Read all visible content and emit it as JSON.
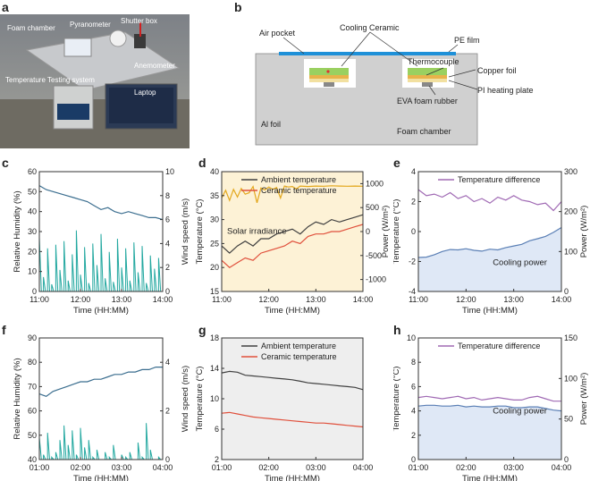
{
  "panel_labels": {
    "a": "a",
    "b": "b",
    "c": "c",
    "d": "d",
    "e": "e",
    "f": "f",
    "g": "g",
    "h": "h"
  },
  "photo_labels": {
    "pyranometer": "Pyranometer",
    "shutter_box": "Shutter box",
    "foam_chamber": "Foam chamber",
    "anemometer": "Anemometer",
    "temp_system": "Temperature Testing system",
    "laptop": "Laptop"
  },
  "schematic": {
    "cooling_ceramic": "Cooling Ceramic",
    "air_pocket": "Air pocket",
    "pe_film": "PE film",
    "thermocouple": "Thermocouple",
    "copper_foil": "Copper foil",
    "pi_heating": "PI heating plate",
    "eva": "EVA foam rubber",
    "al_foil": "Al foil",
    "foam_chamber": "Foam chamber",
    "colors": {
      "foam": "#d0d0d0",
      "film": "#1e90d8",
      "ceramic": "#9ad060",
      "copper": "#e8b24a",
      "heater": "#f2e0a0"
    }
  },
  "chart_data": [
    {
      "id": "c",
      "type": "line",
      "xlabel": "Time (HH:MM)",
      "ylabel": "Relative Humidity (%)",
      "y2label": "Wind speed (m/s)",
      "xticks": [
        "11:00",
        "12:00",
        "13:00",
        "14:00"
      ],
      "xlim": [
        0,
        180
      ],
      "ylim": [
        0,
        60
      ],
      "yticks": [
        0,
        10,
        20,
        30,
        40,
        50,
        60
      ],
      "y2lim": [
        0,
        10
      ],
      "y2ticks": [
        0,
        2,
        4,
        6,
        8,
        10
      ],
      "series": [
        {
          "name": "Relative Humidity",
          "axis": "left",
          "color": "#3b6e8f",
          "kind": "line",
          "x": [
            0,
            10,
            20,
            30,
            40,
            50,
            60,
            70,
            80,
            90,
            100,
            110,
            120,
            130,
            140,
            150,
            160,
            170,
            180
          ],
          "y": [
            53,
            51,
            50,
            49,
            48,
            47,
            46,
            45,
            43,
            41,
            42,
            40,
            39,
            40,
            39,
            38,
            37,
            37,
            36
          ]
        },
        {
          "name": "Wind speed",
          "axis": "right",
          "color": "#23a8a0",
          "kind": "spiky",
          "x": [
            0,
            6,
            12,
            18,
            24,
            30,
            36,
            42,
            48,
            54,
            60,
            66,
            72,
            78,
            84,
            90,
            96,
            102,
            108,
            114,
            120,
            126,
            132,
            138,
            144,
            150,
            156,
            162,
            168,
            174,
            180
          ],
          "y": [
            4.5,
            1.2,
            3.6,
            0.6,
            3.9,
            1.8,
            4.2,
            0.9,
            3.1,
            5.1,
            1.4,
            3.7,
            0.7,
            4.0,
            2.2,
            4.8,
            1.1,
            3.3,
            0.8,
            4.4,
            2.0,
            3.6,
            0.9,
            4.1,
            1.6,
            3.8,
            0.7,
            3.0,
            1.9,
            2.8,
            1.5
          ]
        }
      ]
    },
    {
      "id": "d",
      "type": "line",
      "xlabel": "Time (HH:MM)",
      "ylabel": "Temperature (°C)",
      "y2label": "Power (W/m²)",
      "xticks": [
        "11:00",
        "12:00",
        "13:00",
        "14:00"
      ],
      "xlim": [
        0,
        180
      ],
      "ylim": [
        15,
        40
      ],
      "yticks": [
        15,
        20,
        25,
        30,
        35,
        40
      ],
      "y2lim": [
        -1250,
        1250
      ],
      "y2ticks": [
        -1000,
        -500,
        0,
        500,
        1000
      ],
      "background": "#fdf2d6",
      "legend": [
        "Ambient temperature",
        "Ceramic temperature"
      ],
      "annotation": "Solar irradiance",
      "series": [
        {
          "name": "Ambient temperature",
          "axis": "left",
          "color": "#404040",
          "kind": "line",
          "x": [
            0,
            10,
            20,
            30,
            40,
            50,
            60,
            70,
            80,
            90,
            100,
            110,
            120,
            130,
            140,
            150,
            160,
            170,
            180
          ],
          "y": [
            24.5,
            23.0,
            24.5,
            25.5,
            24.5,
            26.0,
            26.0,
            27.0,
            27.5,
            28.0,
            27.0,
            28.5,
            29.5,
            29.0,
            30.0,
            29.5,
            30.0,
            30.5,
            31.0
          ]
        },
        {
          "name": "Ceramic temperature",
          "axis": "left",
          "color": "#e0503c",
          "kind": "line",
          "x": [
            0,
            10,
            20,
            30,
            40,
            50,
            60,
            70,
            80,
            90,
            100,
            110,
            120,
            130,
            140,
            150,
            160,
            170,
            180
          ],
          "y": [
            21.5,
            20.0,
            21.0,
            22.0,
            21.5,
            23.0,
            23.5,
            24.0,
            24.5,
            25.5,
            25.0,
            26.5,
            27.0,
            27.0,
            27.5,
            27.5,
            28.0,
            28.5,
            29.0
          ]
        },
        {
          "name": "Solar irradiance",
          "axis": "right",
          "color": "#e3a81e",
          "kind": "line",
          "x": [
            0,
            5,
            10,
            15,
            20,
            25,
            30,
            35,
            40,
            45,
            50,
            55,
            60,
            65,
            70,
            75,
            80,
            85,
            90,
            95,
            100,
            110,
            120,
            130,
            140,
            150,
            160,
            170,
            180
          ],
          "y": [
            700,
            860,
            650,
            880,
            720,
            900,
            780,
            810,
            940,
            600,
            910,
            870,
            930,
            880,
            920,
            700,
            950,
            930,
            940,
            890,
            950,
            940,
            950,
            945,
            955,
            950,
            945,
            950,
            945
          ]
        }
      ]
    },
    {
      "id": "e",
      "type": "area",
      "xlabel": "Time (HH:MM)",
      "ylabel": "Temperature (°C)",
      "y2label": "Power (W/m²)",
      "xticks": [
        "11:00",
        "12:00",
        "13:00",
        "14:00"
      ],
      "xlim": [
        0,
        180
      ],
      "ylim": [
        -4,
        4
      ],
      "yticks": [
        -4,
        -2,
        0,
        2,
        4
      ],
      "y2lim": [
        0,
        300
      ],
      "y2ticks": [
        0,
        100,
        200,
        300
      ],
      "legend": [
        "Temperature difference"
      ],
      "annotation": "Cooling power",
      "series": [
        {
          "name": "Temperature difference",
          "axis": "left",
          "color": "#a06ab4",
          "kind": "line",
          "x": [
            0,
            10,
            20,
            30,
            40,
            50,
            60,
            70,
            80,
            90,
            100,
            110,
            120,
            130,
            140,
            150,
            160,
            170,
            180
          ],
          "y": [
            2.8,
            2.4,
            2.5,
            2.3,
            2.6,
            2.2,
            2.4,
            2.0,
            2.2,
            1.9,
            2.3,
            2.1,
            2.4,
            2.1,
            2.0,
            1.8,
            1.9,
            1.4,
            2.0
          ]
        },
        {
          "name": "Cooling power",
          "axis": "right",
          "color": "#5a7fb5",
          "kind": "area",
          "fill": "#dfe8f6",
          "x": [
            0,
            10,
            20,
            30,
            40,
            50,
            60,
            70,
            80,
            90,
            100,
            110,
            120,
            130,
            140,
            150,
            160,
            170,
            180
          ],
          "y": [
            85,
            86,
            92,
            100,
            105,
            104,
            107,
            103,
            101,
            106,
            104,
            110,
            114,
            118,
            127,
            132,
            138,
            148,
            160
          ]
        }
      ]
    },
    {
      "id": "f",
      "type": "line",
      "xlabel": "Time (HH:MM)",
      "ylabel": "Relative Humidity (%)",
      "y2label": "Wind speed (m/s)",
      "xticks": [
        "01:00",
        "02:00",
        "03:00",
        "04:00"
      ],
      "xlim": [
        0,
        180
      ],
      "ylim": [
        40,
        90
      ],
      "yticks": [
        40,
        50,
        60,
        70,
        80,
        90
      ],
      "y2lim": [
        0,
        5
      ],
      "y2ticks": [
        0,
        2,
        4
      ],
      "series": [
        {
          "name": "Relative Humidity",
          "axis": "left",
          "color": "#3b6e8f",
          "kind": "line",
          "x": [
            0,
            10,
            20,
            30,
            40,
            50,
            60,
            70,
            80,
            90,
            100,
            110,
            120,
            130,
            140,
            150,
            160,
            170,
            180
          ],
          "y": [
            67,
            66,
            68,
            69,
            70,
            71,
            72,
            72,
            73,
            73,
            74,
            75,
            75,
            76,
            76,
            77,
            77,
            78,
            78
          ]
        },
        {
          "name": "Wind speed",
          "axis": "right",
          "color": "#23a8a0",
          "kind": "spiky",
          "x": [
            0,
            6,
            12,
            18,
            24,
            30,
            36,
            42,
            48,
            54,
            60,
            66,
            72,
            78,
            84,
            90,
            96,
            102,
            108,
            114,
            120,
            126,
            132,
            138,
            144,
            150,
            156,
            162,
            168,
            174,
            180
          ],
          "y": [
            0.9,
            0.2,
            1.1,
            0.1,
            0.3,
            0.8,
            1.4,
            0.6,
            1.2,
            0.2,
            1.3,
            0.5,
            0.8,
            0.1,
            0.4,
            0.0,
            0.3,
            0.1,
            0.6,
            0.0,
            0.2,
            0.1,
            0.3,
            0.0,
            0.7,
            0.1,
            1.5,
            0.4,
            0.0,
            0.1,
            0.0
          ]
        }
      ]
    },
    {
      "id": "g",
      "type": "line",
      "xlabel": "Time (HH:MM)",
      "ylabel": "Temperature (°C)",
      "xticks": [
        "01:00",
        "02:00",
        "03:00",
        "04:00"
      ],
      "xlim": [
        0,
        180
      ],
      "ylim": [
        2,
        18
      ],
      "yticks": [
        2,
        6,
        10,
        14,
        18
      ],
      "background": "#eeeeee",
      "legend": [
        "Ambient temperature",
        "Ceramic temperature"
      ],
      "series": [
        {
          "name": "Ambient temperature",
          "axis": "left",
          "color": "#404040",
          "kind": "line",
          "x": [
            0,
            10,
            20,
            30,
            40,
            50,
            60,
            70,
            80,
            90,
            100,
            110,
            120,
            130,
            140,
            150,
            160,
            170,
            180
          ],
          "y": [
            13.4,
            13.6,
            13.5,
            13.1,
            13.0,
            12.9,
            12.8,
            12.7,
            12.6,
            12.5,
            12.3,
            12.1,
            12.0,
            11.9,
            11.8,
            11.7,
            11.6,
            11.5,
            11.2
          ]
        },
        {
          "name": "Ceramic temperature",
          "axis": "left",
          "color": "#e0503c",
          "kind": "line",
          "x": [
            0,
            10,
            20,
            30,
            40,
            50,
            60,
            70,
            80,
            90,
            100,
            110,
            120,
            130,
            140,
            150,
            160,
            170,
            180
          ],
          "y": [
            8.1,
            8.2,
            8.0,
            7.8,
            7.6,
            7.5,
            7.4,
            7.3,
            7.2,
            7.1,
            7.0,
            6.9,
            6.8,
            6.8,
            6.7,
            6.6,
            6.5,
            6.4,
            6.3
          ]
        }
      ]
    },
    {
      "id": "h",
      "type": "area",
      "xlabel": "Time (HH:MM)",
      "ylabel": "Temperature (°C)",
      "y2label": "Power (W/m²)",
      "xticks": [
        "01:00",
        "02:00",
        "03:00",
        "04:00"
      ],
      "xlim": [
        0,
        180
      ],
      "ylim": [
        0,
        10
      ],
      "yticks": [
        0,
        2,
        4,
        6,
        8,
        10
      ],
      "y2lim": [
        0,
        150
      ],
      "y2ticks": [
        0,
        50,
        100,
        150
      ],
      "legend": [
        "Temperature difference"
      ],
      "annotation": "Cooling power",
      "series": [
        {
          "name": "Temperature difference",
          "axis": "left",
          "color": "#a06ab4",
          "kind": "line",
          "x": [
            0,
            10,
            20,
            30,
            40,
            50,
            60,
            70,
            80,
            90,
            100,
            110,
            120,
            130,
            140,
            150,
            160,
            170,
            180
          ],
          "y": [
            5.1,
            5.2,
            5.1,
            5.0,
            5.1,
            5.2,
            5.0,
            5.1,
            4.9,
            5.0,
            5.1,
            5.0,
            4.9,
            4.9,
            5.1,
            5.2,
            5.0,
            4.8,
            4.8
          ]
        },
        {
          "name": "Cooling power",
          "axis": "right",
          "color": "#5a7fb5",
          "kind": "area",
          "fill": "#dfe8f6",
          "x": [
            0,
            10,
            20,
            30,
            40,
            50,
            60,
            70,
            80,
            90,
            100,
            110,
            120,
            130,
            140,
            150,
            160,
            170,
            180
          ],
          "y": [
            66,
            67,
            67,
            66,
            66,
            67,
            65,
            66,
            65,
            65,
            66,
            66,
            64,
            64,
            65,
            65,
            63,
            61,
            60
          ]
        }
      ]
    }
  ]
}
